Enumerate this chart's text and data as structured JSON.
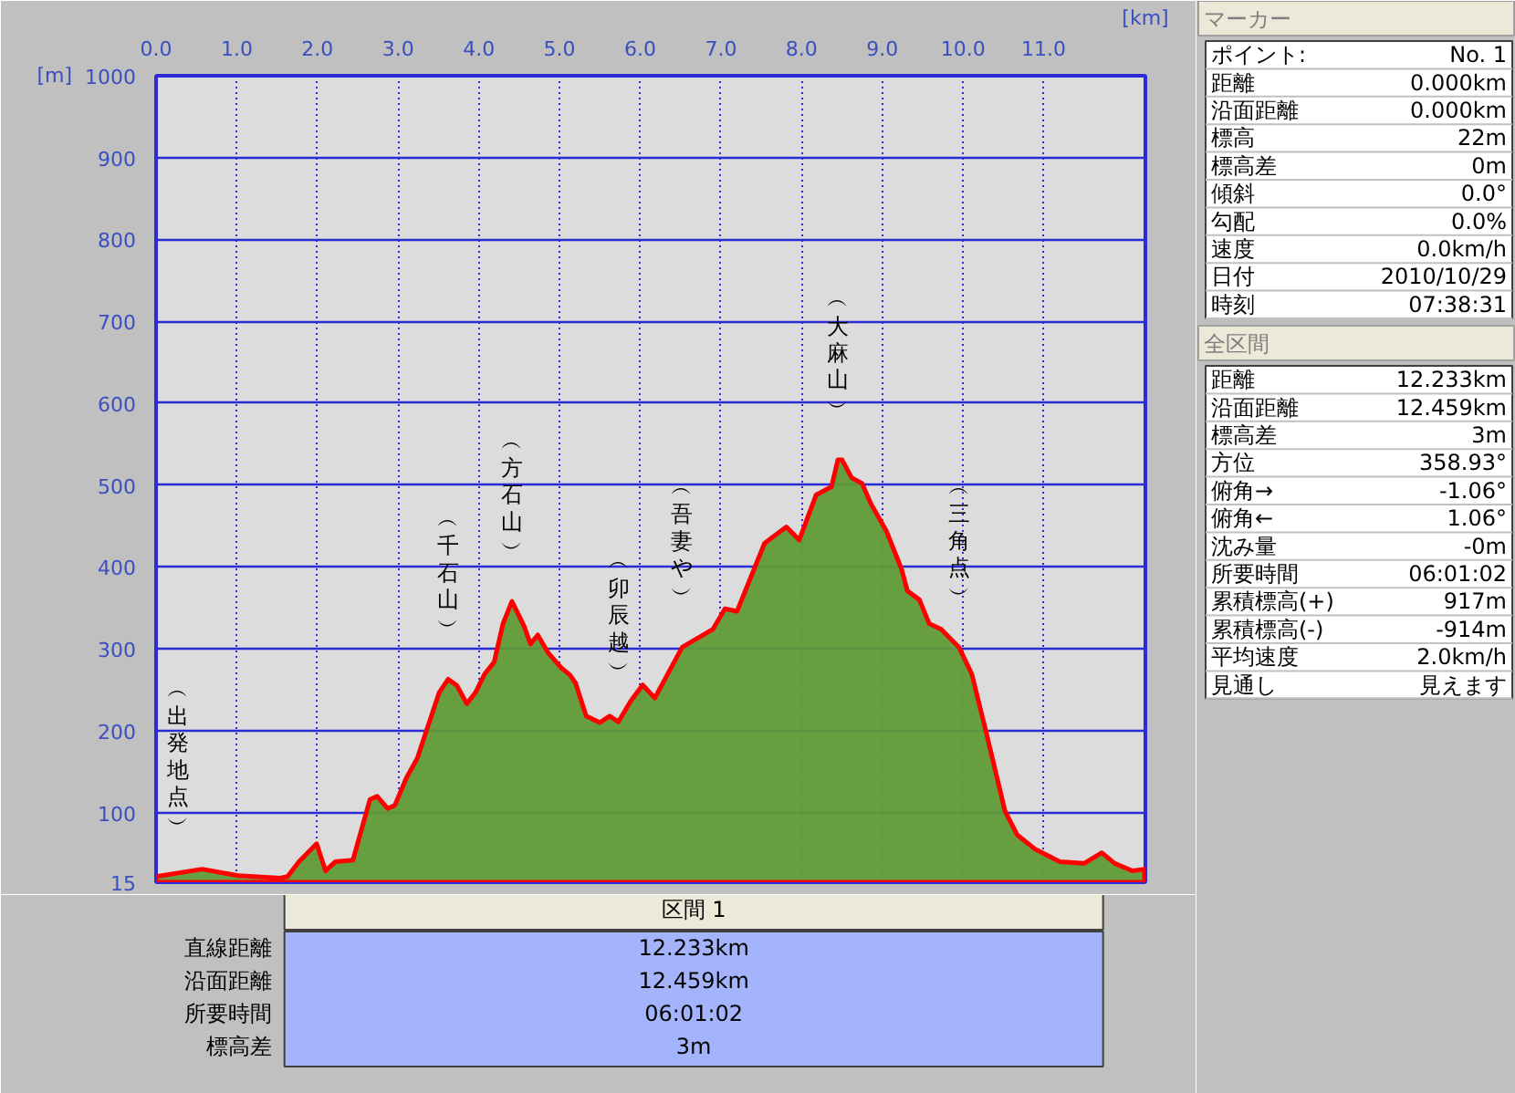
{
  "chart_data": [
    {
      "type": "area",
      "xlabel": "[km]",
      "ylabel": "[m]",
      "color": "#5f9a37",
      "x": [
        0,
        0.57,
        1.02,
        1.54,
        1.63,
        1.77,
        1.99,
        2.1,
        2.22,
        2.44,
        2.65,
        2.74,
        2.87,
        2.96,
        3.1,
        3.24,
        3.35,
        3.51,
        3.62,
        3.73,
        3.85,
        3.96,
        4.07,
        4.19,
        4.3,
        4.41,
        4.56,
        4.64,
        4.73,
        4.86,
        5.02,
        5.13,
        5.2,
        5.33,
        5.5,
        5.62,
        5.73,
        5.88,
        6.03,
        6.18,
        6.52,
        6.9,
        7.05,
        7.2,
        7.54,
        7.81,
        7.97,
        8.18,
        8.37,
        8.45,
        8.5,
        8.62,
        8.75,
        8.86,
        9.05,
        9.24,
        9.31,
        9.46,
        9.58,
        9.73,
        9.95,
        10.11,
        10.29,
        10.52,
        10.67,
        10.9,
        11.2,
        11.5,
        11.72,
        11.88,
        12.1,
        12.25
      ],
      "values": [
        22,
        31,
        23,
        20,
        22,
        40,
        62,
        29,
        40,
        42,
        116,
        120,
        105,
        109,
        142,
        167,
        200,
        247,
        263,
        255,
        233,
        247,
        269,
        284,
        331,
        358,
        328,
        306,
        317,
        295,
        277,
        268,
        258,
        218,
        210,
        218,
        211,
        236,
        256,
        240,
        302,
        324,
        349,
        346,
        429,
        449,
        433,
        488,
        498,
        531,
        531,
        509,
        502,
        477,
        444,
        397,
        371,
        360,
        331,
        324,
        302,
        269,
        197,
        102,
        73,
        55,
        40,
        38,
        51,
        38,
        29,
        31
      ],
      "xlim": [
        0,
        12.26
      ],
      "ylim": [
        15,
        1000
      ],
      "xticks": [
        {
          "value": 0,
          "label": "0.0"
        },
        {
          "value": 1,
          "label": "1.0"
        },
        {
          "value": 2,
          "label": "2.0"
        },
        {
          "value": 3,
          "label": "3.0"
        },
        {
          "value": 4,
          "label": "4.0"
        },
        {
          "value": 5,
          "label": "5.0"
        },
        {
          "value": 6,
          "label": "6.0"
        },
        {
          "value": 7,
          "label": "7.0"
        },
        {
          "value": 8,
          "label": "8.0"
        },
        {
          "value": 9,
          "label": "9.0"
        },
        {
          "value": 10,
          "label": "10.0"
        },
        {
          "value": 11,
          "label": "11.0"
        }
      ],
      "yticks": [
        15,
        100,
        200,
        300,
        400,
        500,
        600,
        700,
        800,
        900,
        1000
      ],
      "grid": true,
      "annotations": [
        {
          "text": "︵出発地点︶",
          "x": 0,
          "y": 22
        },
        {
          "text": "︵千石山︶",
          "x": 3.62,
          "y": 263
        },
        {
          "text": "︵方石山︶",
          "x": 4.41,
          "y": 358
        },
        {
          "text": "︵卯辰越︶",
          "x": 5.73,
          "y": 211
        },
        {
          "text": "︵吾妻や︶",
          "x": 6.52,
          "y": 302
        },
        {
          "text": "︵大麻山︶",
          "x": 8.45,
          "y": 531
        },
        {
          "text": "︵三角点︶",
          "x": 9.95,
          "y": 302
        }
      ]
    },
    {
      "type": "other",
      "title": "マーカー",
      "annotations": [
        "ポイント:",
        "No. 1",
        "距離",
        "0.000km",
        "沿面距離",
        "0.000km",
        "標高",
        "22m",
        "標高差",
        "0m",
        "傾斜",
        "0.0°",
        "勾配",
        "0.0%",
        "速度",
        "0.0km/h",
        "日付",
        "2010/10/29",
        "時刻",
        "07:38:31"
      ]
    },
    {
      "type": "other",
      "title": "全区間",
      "annotations": [
        "距離",
        "12.233km",
        "沿面距離",
        "12.459km",
        "標高差",
        "3m",
        "方位",
        "358.93°",
        "俯角→",
        "-1.06°",
        "俯角←",
        "1.06°",
        "沈み量",
        "-0m",
        "所要時間",
        "06:01:02",
        "累積標高(+)",
        "917m",
        "累積標高(-)",
        "-914m",
        "平均速度",
        "2.0km/h",
        "見通し",
        "見えます"
      ]
    },
    {
      "type": "other",
      "title": "区間 1",
      "annotations": [
        "直線距離",
        "12.233km",
        "沿面距離",
        "12.459km",
        "所要時間",
        "06:01:02",
        "標高差",
        "3m"
      ]
    }
  ]
}
